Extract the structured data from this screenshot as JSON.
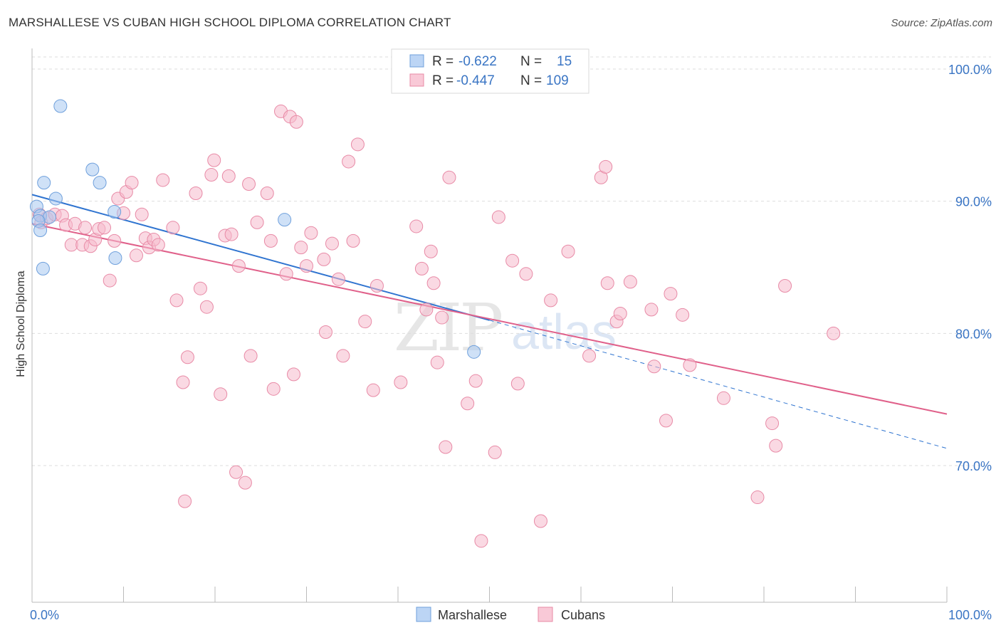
{
  "title": "MARSHALLESE VS CUBAN HIGH SCHOOL DIPLOMA CORRELATION CHART",
  "source": "Source: ZipAtlas.com",
  "watermark": "ZIPatlas",
  "colors": {
    "blue_fill": "#a8c8f0",
    "blue_stroke": "#6fa0dc",
    "blue_line": "#2f74d0",
    "pink_fill": "#f6b9cc",
    "pink_stroke": "#e88aa6",
    "pink_line": "#e0608a",
    "axis_text": "#3a75c4",
    "grid": "#dddddd"
  },
  "legend_top": {
    "rows": [
      {
        "r_label": "R =",
        "r_value": "-0.622",
        "n_label": "N =",
        "n_value": "15"
      },
      {
        "r_label": "R =",
        "r_value": "-0.447",
        "n_label": "N =",
        "n_value": "109"
      }
    ]
  },
  "chart_data": {
    "type": "scatter",
    "title": "MARSHALLESE VS CUBAN HIGH SCHOOL DIPLOMA CORRELATION CHART",
    "xlabel": "",
    "ylabel": "High School Diploma",
    "xlim": [
      0,
      100
    ],
    "ylim": [
      61,
      104
    ],
    "x_tick_labels": [
      "0.0%",
      "100.0%"
    ],
    "y_ticks": [
      {
        "value": 100,
        "label": "100.0%"
      },
      {
        "value": 90,
        "label": "90.0%"
      },
      {
        "value": 80,
        "label": "80.0%"
      },
      {
        "value": 70,
        "label": "70.0%"
      }
    ],
    "grid": true,
    "legend_position": "bottom",
    "series": [
      {
        "name": "Marshallese",
        "color": "#a8c8f0",
        "trend": {
          "x0": 0,
          "y0": 90.5,
          "x1": 50,
          "y1": 81.0,
          "dash_x1": 100,
          "dash_y1": 71.3
        },
        "points": [
          [
            3.1,
            97.2
          ],
          [
            1.3,
            91.4
          ],
          [
            6.6,
            92.4
          ],
          [
            7.4,
            91.4
          ],
          [
            2.6,
            90.2
          ],
          [
            0.5,
            89.6
          ],
          [
            0.9,
            88.9
          ],
          [
            1.9,
            88.8
          ],
          [
            0.7,
            88.5
          ],
          [
            0.9,
            87.8
          ],
          [
            9.0,
            89.2
          ],
          [
            27.6,
            88.6
          ],
          [
            9.1,
            85.7
          ],
          [
            1.2,
            84.9
          ],
          [
            48.3,
            78.6
          ]
        ]
      },
      {
        "name": "Cubans",
        "color": "#f6b9cc",
        "trend": {
          "x0": 0,
          "y0": 88.3,
          "x1": 100,
          "y1": 73.9
        },
        "points": [
          [
            0.8,
            89.0
          ],
          [
            1.0,
            88.4
          ],
          [
            1.6,
            88.7
          ],
          [
            2.5,
            89.0
          ],
          [
            3.3,
            88.9
          ],
          [
            3.7,
            88.2
          ],
          [
            4.3,
            86.7
          ],
          [
            4.7,
            88.3
          ],
          [
            5.5,
            86.7
          ],
          [
            5.8,
            88.0
          ],
          [
            6.4,
            86.6
          ],
          [
            6.9,
            87.1
          ],
          [
            7.3,
            87.9
          ],
          [
            7.9,
            88.0
          ],
          [
            8.5,
            84.0
          ],
          [
            9.0,
            87.0
          ],
          [
            9.4,
            90.2
          ],
          [
            10.0,
            89.1
          ],
          [
            10.3,
            90.7
          ],
          [
            10.9,
            91.4
          ],
          [
            11.4,
            85.9
          ],
          [
            12.0,
            89.0
          ],
          [
            12.4,
            87.2
          ],
          [
            12.8,
            86.5
          ],
          [
            13.3,
            87.1
          ],
          [
            13.8,
            86.7
          ],
          [
            14.3,
            91.6
          ],
          [
            15.4,
            88.0
          ],
          [
            15.8,
            82.5
          ],
          [
            16.5,
            76.3
          ],
          [
            16.7,
            67.3
          ],
          [
            17.0,
            78.2
          ],
          [
            17.9,
            90.6
          ],
          [
            18.4,
            83.4
          ],
          [
            19.1,
            82.0
          ],
          [
            19.6,
            92.0
          ],
          [
            19.9,
            93.1
          ],
          [
            20.6,
            75.4
          ],
          [
            21.1,
            87.4
          ],
          [
            21.5,
            91.9
          ],
          [
            21.8,
            87.5
          ],
          [
            22.3,
            69.5
          ],
          [
            22.6,
            85.1
          ],
          [
            23.3,
            68.7
          ],
          [
            23.7,
            91.3
          ],
          [
            23.9,
            78.3
          ],
          [
            24.6,
            88.4
          ],
          [
            25.7,
            90.6
          ],
          [
            26.1,
            87.0
          ],
          [
            26.4,
            75.8
          ],
          [
            27.2,
            96.8
          ],
          [
            27.8,
            84.5
          ],
          [
            28.2,
            96.4
          ],
          [
            28.6,
            76.9
          ],
          [
            28.9,
            96.0
          ],
          [
            29.4,
            86.5
          ],
          [
            30.0,
            85.1
          ],
          [
            30.5,
            87.6
          ],
          [
            31.9,
            85.6
          ],
          [
            32.1,
            80.1
          ],
          [
            32.8,
            86.8
          ],
          [
            33.5,
            84.1
          ],
          [
            34.0,
            78.3
          ],
          [
            34.6,
            93.0
          ],
          [
            35.1,
            87.0
          ],
          [
            35.6,
            94.3
          ],
          [
            36.4,
            80.9
          ],
          [
            37.3,
            75.7
          ],
          [
            37.7,
            83.6
          ],
          [
            40.3,
            76.3
          ],
          [
            42.0,
            88.1
          ],
          [
            42.6,
            84.9
          ],
          [
            43.1,
            81.8
          ],
          [
            43.6,
            86.2
          ],
          [
            43.9,
            83.8
          ],
          [
            44.3,
            77.8
          ],
          [
            44.8,
            81.2
          ],
          [
            45.2,
            71.4
          ],
          [
            45.6,
            91.8
          ],
          [
            47.6,
            74.7
          ],
          [
            48.5,
            76.4
          ],
          [
            49.1,
            64.3
          ],
          [
            50.6,
            71.0
          ],
          [
            51.0,
            88.8
          ],
          [
            52.5,
            85.5
          ],
          [
            53.1,
            76.2
          ],
          [
            54.0,
            84.5
          ],
          [
            55.6,
            65.8
          ],
          [
            56.7,
            82.5
          ],
          [
            58.6,
            86.2
          ],
          [
            60.9,
            78.3
          ],
          [
            62.2,
            91.8
          ],
          [
            62.7,
            92.6
          ],
          [
            62.9,
            83.8
          ],
          [
            63.9,
            80.9
          ],
          [
            64.3,
            81.5
          ],
          [
            65.4,
            83.9
          ],
          [
            67.7,
            81.8
          ],
          [
            68.0,
            77.5
          ],
          [
            69.3,
            73.4
          ],
          [
            69.8,
            83.0
          ],
          [
            71.1,
            81.4
          ],
          [
            71.9,
            77.6
          ],
          [
            75.6,
            75.1
          ],
          [
            79.3,
            67.6
          ],
          [
            80.9,
            73.2
          ],
          [
            81.3,
            71.5
          ],
          [
            82.3,
            83.6
          ],
          [
            87.6,
            80.0
          ]
        ]
      }
    ]
  },
  "legend_bottom": [
    "Marshallese",
    "Cubans"
  ]
}
